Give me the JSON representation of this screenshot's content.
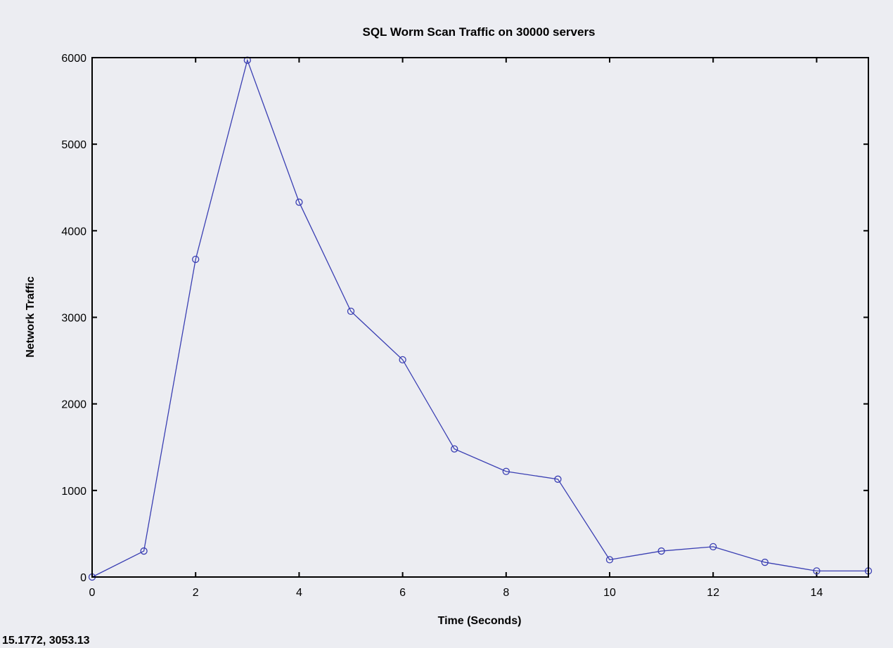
{
  "cursor_readout": "15.1772,  3053.13",
  "colors": {
    "background": "#ecedf2",
    "plot_background": "#ecedf2",
    "series_line": "#3a3fb3",
    "axis": "#000000"
  },
  "chart_data": {
    "type": "line",
    "title": "SQL Worm Scan Traffic on 30000 servers",
    "xlabel": "Time (Seconds)",
    "ylabel": "Network Traffic",
    "xlim": [
      0,
      15
    ],
    "ylim": [
      0,
      6000
    ],
    "x_ticks": [
      0,
      2,
      4,
      6,
      8,
      10,
      12,
      14
    ],
    "x_tick_labels": [
      "0",
      "2",
      "4",
      "6",
      "8",
      "10",
      "12",
      "14"
    ],
    "y_ticks": [
      0,
      1000,
      2000,
      3000,
      4000,
      5000,
      6000
    ],
    "y_tick_labels": [
      "0",
      "1000",
      "2000",
      "3000",
      "4000",
      "5000",
      "6000"
    ],
    "grid": false,
    "marker": "circle",
    "series": [
      {
        "x": [
          0,
          1,
          2,
          3,
          4,
          5,
          6,
          7,
          8,
          9,
          10,
          11,
          12,
          13,
          14,
          15
        ],
        "y": [
          0,
          300,
          3670,
          5970,
          4330,
          3070,
          2510,
          1480,
          1220,
          1130,
          200,
          300,
          350,
          170,
          70,
          70
        ]
      }
    ]
  }
}
